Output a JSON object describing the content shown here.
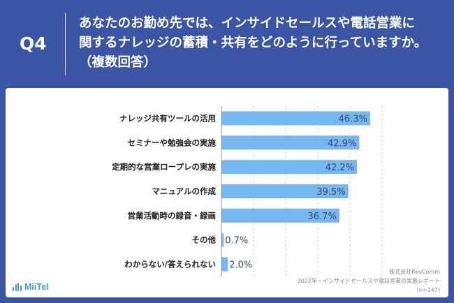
{
  "header": {
    "question_number": "Q4",
    "question_lines": [
      "あなたのお勤め先では、インサイドセールスや電話営業に",
      "関するナレッジの蓄積・共有をどのように行っていますか。",
      "（複数回答）"
    ]
  },
  "chart_data": {
    "type": "bar",
    "orientation": "horizontal",
    "categories": [
      "ナレッジ共有ツールの活用",
      "セミナーや勉強会の実施",
      "定期的な営業ロープレの実施",
      "マニュアルの作成",
      "営業活動時の録音・録画",
      "その他",
      "わからない/答えられない"
    ],
    "values": [
      46.3,
      42.9,
      42.2,
      39.5,
      36.7,
      0.7,
      2.0
    ],
    "value_labels": [
      "46.3%",
      "42.9%",
      "42.2%",
      "39.5%",
      "36.7%",
      "0.7%",
      "2.0%"
    ],
    "xlim": [
      0,
      50
    ],
    "bar_color": "#75B8F1",
    "grid": true
  },
  "footer": {
    "company": "株式会社RevComm",
    "report": "2022年・インサイドセールスや電話営業の実態レポート",
    "sample": "(n=147)"
  },
  "logo": {
    "text": "MiiTel",
    "icon": "sound-wave-icon"
  },
  "colors": {
    "background": "#3A55A3",
    "panel": "#FFFFFF",
    "bar": "#75B8F1",
    "logo": "#3A9DDB"
  }
}
